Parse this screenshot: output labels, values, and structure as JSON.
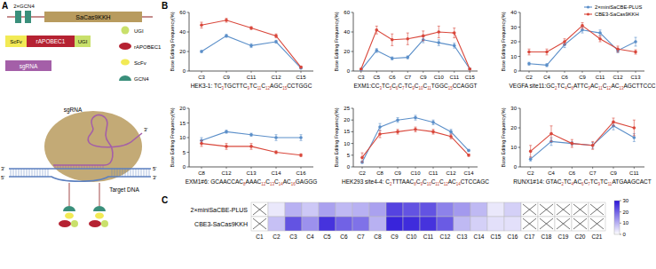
{
  "panel_labels": [
    "A",
    "B",
    "C"
  ],
  "diagram": {
    "gcn4_construct": "2×GCN4",
    "cas9": "SaCas9KKH",
    "scfv": "ScFv",
    "deaminase": "rAPOBEC1",
    "ugi": "UGI",
    "sgrna_box": "sgRNA",
    "key": [
      "UGI",
      "rAPOBEC1",
      "ScFv",
      "GCN4"
    ],
    "sgrna": "sgRNA",
    "sgrna_end": "3'",
    "dna_ends": [
      "3'",
      "5'",
      "5'",
      "3'"
    ],
    "target": "Target DNA"
  },
  "chart_data": [
    {
      "type": "line",
      "y_label": "Base Editing Frequency(%)",
      "x_label_parts": [
        [
          "HEK3-1: TC",
          "3"
        ],
        [
          "TGCTTC",
          "9"
        ],
        [
          "TC",
          "11"
        ],
        [
          "C",
          "12"
        ],
        [
          "AGC",
          "15"
        ],
        [
          "CCTGGC",
          null
        ]
      ],
      "categories": [
        "C3",
        "C9",
        "C11",
        "C12",
        "C15"
      ],
      "ylim": [
        0,
        60
      ],
      "yticks": [
        0,
        20,
        40,
        60
      ],
      "grid": false,
      "series": [
        {
          "color": "#5b8fc9",
          "marker": "circle",
          "values": [
            20,
            36,
            26,
            30,
            3
          ],
          "errors": [
            1,
            1.5,
            2,
            1.5,
            0.5
          ]
        },
        {
          "color": "#d9473b",
          "marker": "circle",
          "values": [
            47,
            52,
            44,
            36,
            4
          ],
          "errors": [
            3,
            2,
            1.5,
            2,
            1
          ]
        }
      ]
    },
    {
      "type": "line",
      "y_label": "Base Editing Frequency(%)",
      "x_label_parts": [
        [
          "EXM1:CC",
          "3"
        ],
        [
          "TC",
          "5"
        ],
        [
          "C",
          "6"
        ],
        [
          "C",
          "7"
        ],
        [
          "TC",
          "9"
        ],
        [
          "C",
          "10"
        ],
        [
          "C",
          "11"
        ],
        [
          "TGGC",
          "15"
        ],
        [
          "CCAGGT",
          null
        ]
      ],
      "categories": [
        "C3",
        "C5",
        "C6",
        "C7",
        "C9",
        "C10",
        "C11",
        "C15"
      ],
      "ylim": [
        0,
        60
      ],
      "yticks": [
        0,
        20,
        40,
        60
      ],
      "grid": false,
      "series": [
        {
          "color": "#5b8fc9",
          "marker": "circle",
          "values": [
            1,
            21,
            13,
            14,
            32,
            29,
            26,
            2
          ],
          "errors": [
            0.5,
            2,
            1.5,
            1.5,
            3,
            3,
            2.5,
            0.5
          ]
        },
        {
          "color": "#d9473b",
          "marker": "circle",
          "values": [
            2,
            42,
            32,
            33,
            36,
            40,
            39,
            2
          ],
          "errors": [
            0.5,
            4,
            6,
            6,
            5,
            6,
            5,
            0.5
          ]
        }
      ]
    },
    {
      "type": "line",
      "y_label": "Base Editing Frequency(%)",
      "x_label_parts": [
        [
          "VEGFA site11:GC",
          "2"
        ],
        [
          "TC",
          "4"
        ],
        [
          "C",
          "6"
        ],
        [
          "ATTC",
          "9"
        ],
        [
          "AC",
          "11"
        ],
        [
          "C",
          "12"
        ],
        [
          "AC",
          "13"
        ],
        [
          "AGCTTCCC",
          null
        ]
      ],
      "categories": [
        "C2",
        "C4",
        "C6",
        "C9",
        "C11",
        "C12",
        "C13"
      ],
      "ylim": [
        0,
        40
      ],
      "yticks": [
        0,
        10,
        20,
        30,
        40
      ],
      "grid": false,
      "legend": "upper right",
      "series": [
        {
          "name": "2×miniSaCBE-PLUS",
          "color": "#5b8fc9",
          "marker": "circle",
          "values": [
            5,
            4,
            18,
            28,
            26,
            14,
            20
          ],
          "errors": [
            1,
            1,
            2,
            2,
            2,
            1.5,
            3
          ]
        },
        {
          "name": "CBE3-SaCas9KKH",
          "color": "#d9473b",
          "marker": "circle",
          "values": [
            13,
            13,
            20,
            31,
            22,
            15,
            13
          ],
          "errors": [
            2,
            2,
            2,
            2,
            2,
            2,
            1.5
          ]
        }
      ]
    },
    {
      "type": "line",
      "y_label": "Base Editing Frequency(%)",
      "x_label_parts": [
        [
          "EXM1#6: GCAACCAC",
          "8"
        ],
        [
          "AAAC",
          "12"
        ],
        [
          "C",
          "13"
        ],
        [
          "C",
          "14"
        ],
        [
          "AC",
          "16"
        ],
        [
          "GAGGG",
          null
        ]
      ],
      "categories": [
        "C8",
        "C12",
        "C13",
        "C14",
        "C16"
      ],
      "ylim": [
        0,
        20
      ],
      "yticks": [
        0,
        5,
        10,
        15,
        20
      ],
      "grid": false,
      "series": [
        {
          "color": "#5b8fc9",
          "marker": "circle",
          "values": [
            9,
            12,
            11,
            10,
            10
          ],
          "errors": [
            1,
            0.5,
            0.5,
            1,
            1
          ]
        },
        {
          "color": "#d9473b",
          "marker": "circle",
          "values": [
            8,
            7,
            7,
            5,
            4
          ],
          "errors": [
            1,
            1,
            1,
            0.5,
            0.5
          ]
        }
      ]
    },
    {
      "type": "line",
      "y_label": "Base Editing Frequency(%)",
      "x_label_parts": [
        [
          "HEK293 site4-4: C",
          "2"
        ],
        [
          "TTTAAC",
          "8"
        ],
        [
          "C",
          "9"
        ],
        [
          "C",
          "10"
        ],
        [
          "C",
          "11"
        ],
        [
          "C",
          "12"
        ],
        [
          "AC",
          "14"
        ],
        [
          "CTCCAGC",
          null
        ]
      ],
      "categories": [
        "C2",
        "C8",
        "C9",
        "C10",
        "C11",
        "C12",
        "C14"
      ],
      "ylim": [
        0,
        25
      ],
      "yticks": [
        0,
        5,
        10,
        15,
        20,
        25
      ],
      "grid": false,
      "series": [
        {
          "color": "#5b8fc9",
          "marker": "circle",
          "values": [
            2,
            17,
            20,
            21,
            19,
            15,
            7
          ],
          "errors": [
            0.5,
            1.5,
            1,
            1,
            1,
            1,
            0.5
          ]
        },
        {
          "color": "#d9473b",
          "marker": "circle",
          "values": [
            4,
            14,
            15,
            16,
            15,
            13,
            5
          ],
          "errors": [
            2,
            1.5,
            1,
            1,
            1,
            1,
            0.5
          ]
        }
      ]
    },
    {
      "type": "line",
      "y_label": "Base Editing Frequency(%)",
      "x_label_parts": [
        [
          "RUNX1#14: GTAC",
          "2"
        ],
        [
          "TC",
          "4"
        ],
        [
          "AC",
          "6"
        ],
        [
          "C",
          "7"
        ],
        [
          "TC",
          "9"
        ],
        [
          "TC",
          "11"
        ],
        [
          "ATGAAGCACT",
          null
        ]
      ],
      "categories": [
        "C2",
        "C4",
        "C6",
        "C7",
        "C9",
        "C11"
      ],
      "ylim": [
        0,
        30
      ],
      "yticks": [
        0,
        10,
        20,
        30
      ],
      "grid": false,
      "series": [
        {
          "color": "#5b8fc9",
          "marker": "circle",
          "values": [
            4,
            13,
            12,
            11,
            21,
            15
          ],
          "errors": [
            1,
            2,
            1,
            1.5,
            2,
            2
          ]
        },
        {
          "color": "#d9473b",
          "marker": "circle",
          "values": [
            8,
            17,
            12,
            11,
            23,
            20
          ],
          "errors": [
            3,
            4,
            2,
            2,
            2,
            4
          ]
        }
      ]
    },
    {
      "type": "heatmap",
      "rows": [
        "2×miniSaCBE-PLUS",
        "CBE3-SaCas9KKH"
      ],
      "categories": [
        "C1",
        "C2",
        "C3",
        "C4",
        "C5",
        "C6",
        "C7",
        "C8",
        "C9",
        "C10",
        "C11",
        "C12",
        "C13",
        "C14",
        "C15",
        "C16",
        "C17",
        "C18",
        "C19",
        "C20",
        "C21"
      ],
      "cells": [
        [
          null,
          3,
          10,
          7,
          12,
          9,
          10,
          12,
          24,
          22,
          22,
          16,
          13,
          9,
          3,
          6,
          null,
          null,
          null,
          null,
          null
        ],
        [
          null,
          8,
          22,
          14,
          26,
          20,
          18,
          10,
          28,
          27,
          26,
          21,
          9,
          6,
          4,
          4,
          null,
          null,
          null,
          null,
          null
        ]
      ],
      "colors": [
        "#ffffff",
        "#2a14d8"
      ],
      "color_range": [
        0,
        30
      ],
      "color_ticks": [
        0,
        10,
        20,
        30
      ]
    }
  ]
}
